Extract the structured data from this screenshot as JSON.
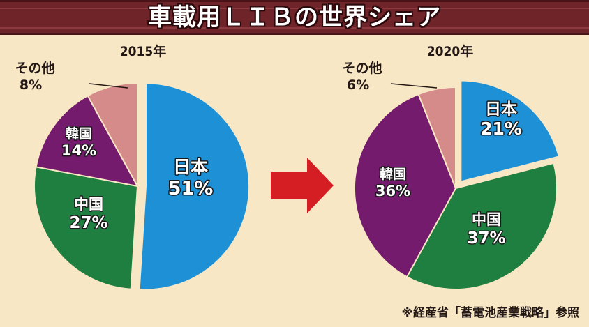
{
  "title": "車載用ＬＩＢの世界シェア",
  "source_note": "※経産省「蓄電池産業戦略」参照",
  "colors": {
    "japan": "#1e91d6",
    "china": "#1f7f41",
    "korea": "#751b6e",
    "other": "#d68b8b",
    "arrow": "#d51e24",
    "title_bg": "#6e2428",
    "background": "#f8e7c4"
  },
  "chart_data": [
    {
      "type": "pie",
      "title": "2015年",
      "slices": [
        {
          "label": "日本",
          "value": 51,
          "value_label": "51%",
          "color_key": "japan",
          "exploded": true
        },
        {
          "label": "中国",
          "value": 27,
          "value_label": "27%",
          "color_key": "china"
        },
        {
          "label": "韓国",
          "value": 14,
          "value_label": "14%",
          "color_key": "korea"
        },
        {
          "label": "その他",
          "value": 8,
          "value_label": "8%",
          "color_key": "other",
          "label_outside": true
        }
      ]
    },
    {
      "type": "pie",
      "title": "2020年",
      "slices": [
        {
          "label": "日本",
          "value": 21,
          "value_label": "21%",
          "color_key": "japan",
          "exploded": true
        },
        {
          "label": "中国",
          "value": 37,
          "value_label": "37%",
          "color_key": "china"
        },
        {
          "label": "韓国",
          "value": 36,
          "value_label": "36%",
          "color_key": "korea"
        },
        {
          "label": "その他",
          "value": 6,
          "value_label": "6%",
          "color_key": "other",
          "label_outside": true
        }
      ]
    }
  ]
}
